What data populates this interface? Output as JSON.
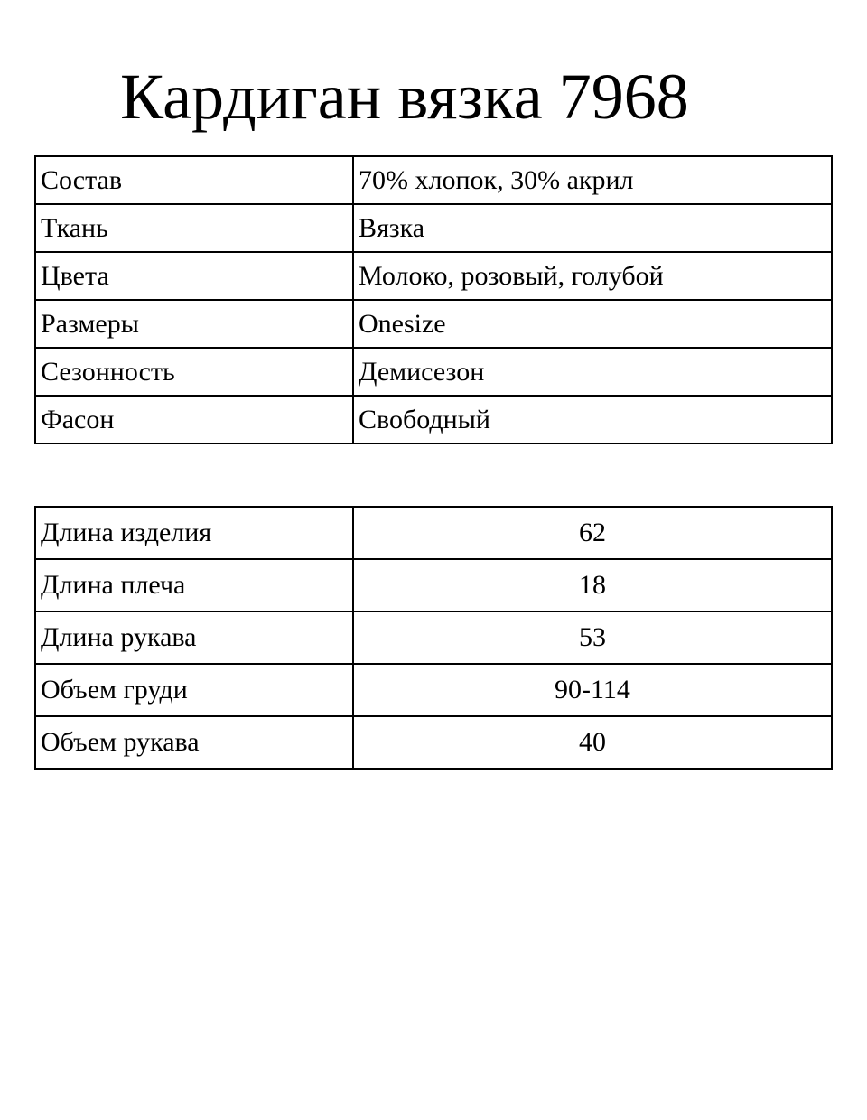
{
  "title": "Кардиган вязка 7968",
  "properties": [
    {
      "label": "Состав",
      "value": "70% хлопок, 30% акрил"
    },
    {
      "label": "Ткань",
      "value": "Вязка"
    },
    {
      "label": "Цвета",
      "value": "Молоко, розовый, голубой"
    },
    {
      "label": "Размеры",
      "value": "Onesize"
    },
    {
      "label": "Сезонность",
      "value": "Демисезон"
    },
    {
      "label": "Фасон",
      "value": "Свободный"
    }
  ],
  "measurements": [
    {
      "label": "Длина изделия",
      "value": "62"
    },
    {
      "label": "Длина плеча",
      "value": "18"
    },
    {
      "label": "Длина рукава",
      "value": "53"
    },
    {
      "label": "Объем груди",
      "value": "90-114"
    },
    {
      "label": "Объем рукава",
      "value": "40"
    }
  ]
}
